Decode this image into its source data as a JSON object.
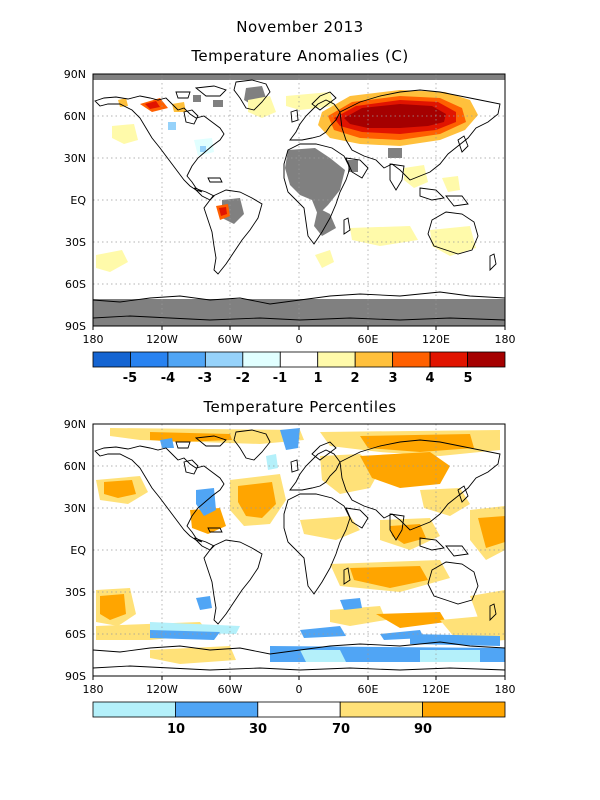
{
  "header": {
    "title": "November 2013"
  },
  "anomaly_panel": {
    "title": "Temperature Anomalies (C)",
    "lat_labels": [
      "90N",
      "60N",
      "30N",
      "EQ",
      "30S",
      "60S",
      "90S"
    ],
    "lon_labels": [
      "180",
      "120W",
      "60W",
      "0",
      "60E",
      "120E",
      "180"
    ],
    "colorbar": {
      "labels": [
        "-5",
        "-4",
        "-3",
        "-2",
        "-1",
        "1",
        "2",
        "3",
        "4",
        "5"
      ],
      "colors": [
        "#1464d2",
        "#2882f0",
        "#50a5f5",
        "#96d2fa",
        "#e1ffff",
        "#ffffff",
        "#fffaaa",
        "#ffc03c",
        "#ff6000",
        "#e11400",
        "#a50000"
      ]
    }
  },
  "percentile_panel": {
    "title": "Temperature Percentiles",
    "lat_labels": [
      "90N",
      "60N",
      "30N",
      "EQ",
      "30S",
      "60S",
      "90S"
    ],
    "lon_labels": [
      "180",
      "120W",
      "60W",
      "0",
      "60E",
      "120E",
      "180"
    ],
    "colorbar": {
      "labels": [
        "10",
        "30",
        "70",
        "90"
      ],
      "colors": [
        "#b4f0fa",
        "#50a5f5",
        "#ffffff",
        "#ffe178",
        "#ffa500"
      ]
    }
  },
  "colors": {
    "missing": "#808080",
    "coast": "#000000",
    "grid": "#9a9a9a"
  }
}
